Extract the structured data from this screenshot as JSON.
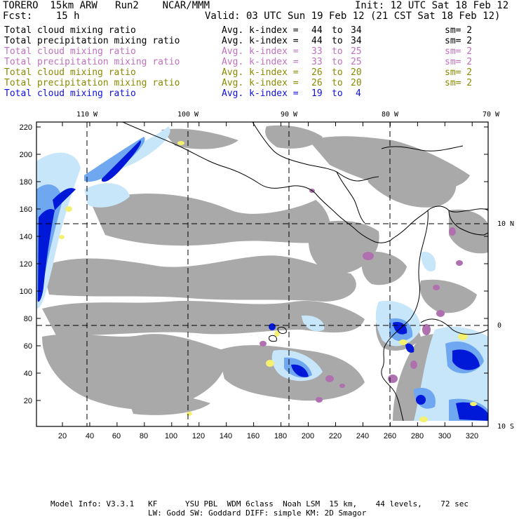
{
  "header": {
    "run_info": "TORERO  15km ARW   Run2    NCAR/MMM",
    "init": "Init: 12 UTC Sat 18 Feb 12",
    "fcst": "Fcst:    15 h",
    "valid": "Valid: 03 UTC Sun 19 Feb 12 (21 CST Sat 18 Feb 12)"
  },
  "legend": [
    {
      "field": "Total cloud mixing ratio",
      "index_label": "Avg. k-index =",
      "from": "44",
      "to_label": "to",
      "to": "34",
      "sm": "sm= 2",
      "color": "#000000"
    },
    {
      "field": "Total precipitation mixing ratio",
      "index_label": "Avg. k-index =",
      "from": "44",
      "to_label": "to",
      "to": "34",
      "sm": "sm= 2",
      "color": "#000000"
    },
    {
      "field": "Total cloud mixing ratio",
      "index_label": "Avg. k-index =",
      "from": "33",
      "to_label": "to",
      "to": "25",
      "sm": "sm= 2",
      "color": "#c070c0"
    },
    {
      "field": "Total precipitation mixing ratio",
      "index_label": "Avg. k-index =",
      "from": "33",
      "to_label": "to",
      "to": "25",
      "sm": "sm= 2",
      "color": "#c070c0"
    },
    {
      "field": "Total cloud mixing ratio",
      "index_label": "Avg. k-index =",
      "from": "26",
      "to_label": "to",
      "to": "20",
      "sm": "sm= 2",
      "color": "#8a8a00"
    },
    {
      "field": "Total precipitation mixing ratio",
      "index_label": "Avg. k-index =",
      "from": "26",
      "to_label": "to",
      "to": "20",
      "sm": "sm= 2",
      "color": "#8a8a00"
    },
    {
      "field": "Total cloud mixing ratio",
      "index_label": "Avg. k-index =",
      "from": "19",
      "to_label": "to",
      "to": "4",
      "sm": "",
      "color": "#1010e0"
    }
  ],
  "map": {
    "lon_labels": [
      "110 W",
      "100 W",
      "90 W",
      "80 W",
      "70 W"
    ],
    "lat_labels": [
      "10 N",
      "0",
      "10 S"
    ],
    "y_ticks": [
      "220",
      "200",
      "180",
      "160",
      "140",
      "120",
      "100",
      "80",
      "60",
      "40",
      "20"
    ],
    "x_ticks": [
      "20",
      "40",
      "60",
      "80",
      "100",
      "120",
      "140",
      "160",
      "180",
      "200",
      "220",
      "240",
      "260",
      "280",
      "300",
      "320"
    ],
    "colors": {
      "mid_cloud": "#a9a9a9",
      "light_blue": "#c8e6fa",
      "mid_blue": "#6fa8f0",
      "dark_blue": "#0018d8",
      "yellow": "#f4f070",
      "purple": "#b070b0"
    }
  },
  "footer": {
    "line1": "Model Info: V3.3.1   KF      YSU PBL  WDM 6class  Noah LSM  15 km,    44 levels,    72 sec",
    "line2": "LW: Godd SW: Goddard DIFF: simple KM: 2D Smagor"
  }
}
